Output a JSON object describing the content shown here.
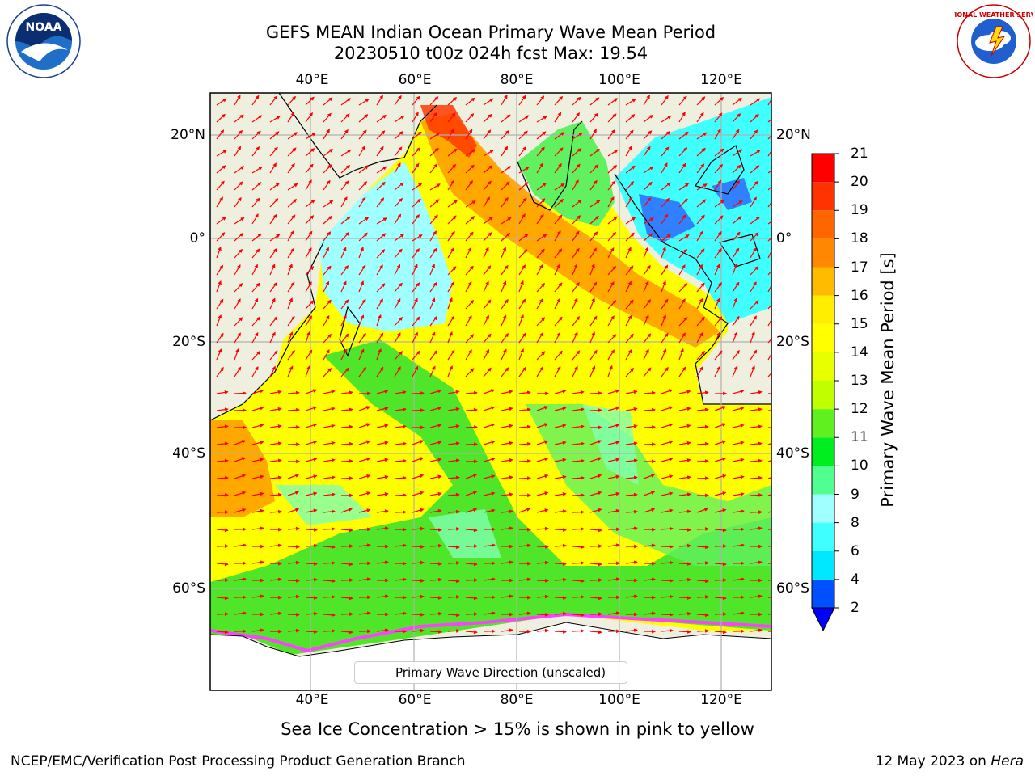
{
  "title": {
    "line1": "GEFS MEAN Indian Ocean Primary Wave Mean Period",
    "line2": "20230510 t00z 024h fcst   Max: 19.54"
  },
  "map": {
    "lon_labels": [
      "40°E",
      "60°E",
      "80°E",
      "100°E",
      "120°E"
    ],
    "lat_labels": [
      "20°N",
      "0°",
      "20°S",
      "40°S",
      "60°S"
    ],
    "legend": "Primary Wave Direction (unscaled)"
  },
  "colorbar": {
    "label": "Primary Wave Mean Period [s]",
    "ticks": [
      "2",
      "4",
      "6",
      "8",
      "9",
      "10",
      "11",
      "12",
      "13",
      "14",
      "15",
      "16",
      "17",
      "18",
      "19",
      "20",
      "21"
    ],
    "colors": [
      "#0050ff",
      "#00e8ff",
      "#40ffff",
      "#a0ffff",
      "#50ff90",
      "#00ee20",
      "#60f020",
      "#c0ff00",
      "#e8ff00",
      "#ffff00",
      "#ffee00",
      "#ffbb00",
      "#ff8800",
      "#ff6600",
      "#ff3300",
      "#ff0000"
    ],
    "underflow_color": "#0000ff"
  },
  "subtitle": "Sea Ice Concentration > 15% is shown in pink to yellow",
  "footer": {
    "left": "NCEP/EMC/Verification Post Processing Product Generation Branch",
    "right_date": "12 May 2023 on ",
    "right_machine": "Hera"
  },
  "logos": {
    "noaa_text": "NOAA",
    "nws_text": "NATIONAL WEATHER SERVICE"
  }
}
